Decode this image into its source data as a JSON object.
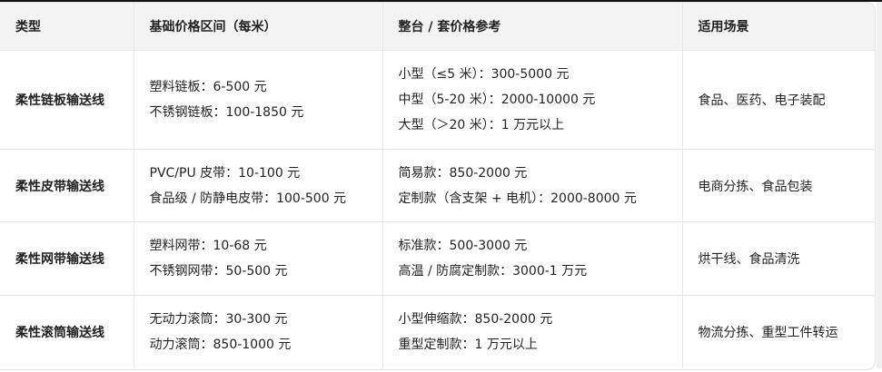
{
  "table": {
    "headers": [
      "类型",
      "基础价格区间（每米）",
      "整台 / 套价格参考",
      "适用场景"
    ],
    "rows": [
      {
        "type": "柔性链板输送线",
        "base": [
          "塑料链板：6-500 元",
          "不锈钢链板：100-1850 元"
        ],
        "unit": [
          "小型（≤5 米）：300-5000 元",
          "中型（5-20 米）：2000-10000 元",
          "大型（＞20 米）：1 万元以上"
        ],
        "scene": "食品、医药、电子装配"
      },
      {
        "type": "柔性皮带输送线",
        "base": [
          "PVC/PU 皮带：10-100 元",
          "食品级 / 防静电皮带：100-500 元"
        ],
        "unit": [
          "简易款：850-2000 元",
          "定制款（含支架 + 电机）：2000-8000 元"
        ],
        "scene": "电商分拣、食品包装"
      },
      {
        "type": "柔性网带输送线",
        "base": [
          "塑料网带：10-68 元",
          "不锈钢网带：50-500 元"
        ],
        "unit": [
          "标准款：500-3000 元",
          "高温 / 防腐定制款：3000-1 万元"
        ],
        "scene": "烘干线、食品清洗"
      },
      {
        "type": "柔性滚筒输送线",
        "base": [
          "无动力滚筒：30-300 元",
          "动力滚筒：850-1000 元"
        ],
        "unit": [
          "小型伸缩款：850-2000 元",
          "重型定制款：1 万元以上"
        ],
        "scene": "物流分拣、重型工件转运"
      }
    ]
  }
}
